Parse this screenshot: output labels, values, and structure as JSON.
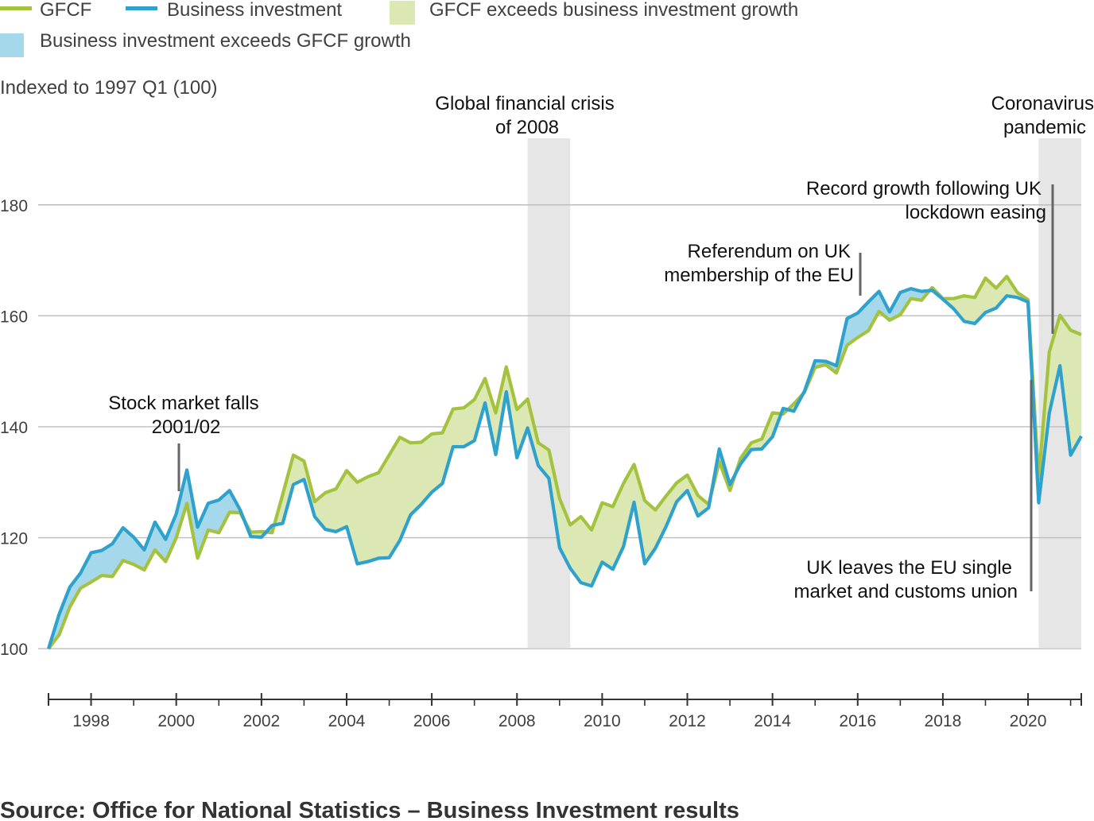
{
  "legend": {
    "gfcf": "GFCF",
    "business": "Business investment",
    "gfcf_exceeds": "GFCF exceeds business investment growth",
    "business_exceeds": "Business investment exceeds GFCF growth"
  },
  "source": "Source: Office for National Statistics – Business Investment results",
  "annotations": {
    "stock_market": [
      "Stock market falls",
      "2001/02"
    ],
    "gfc": [
      "Global financial crisis",
      "of 2008"
    ],
    "referendum": [
      "Referendum on UK",
      "membership of the EU"
    ],
    "covid": [
      "Coronavirus",
      "pandemic"
    ],
    "record_growth": [
      "Record growth following UK",
      "lockdown easing"
    ],
    "uk_leaves": [
      "UK leaves the EU single",
      "market and customs union"
    ]
  },
  "colors": {
    "gfcf": "#a5c23f",
    "business": "#2ea1cc",
    "gfcf_fill": "#dbe8b4",
    "business_fill": "#a6d8eb",
    "shade": "#e6e6e6",
    "grid": "#bdbdbd"
  },
  "chart_data": {
    "type": "line",
    "ylabel": "Indexed to 1997 Q1 (100)",
    "ylim": [
      92,
      192
    ],
    "yticks": [
      100,
      120,
      140,
      160,
      180
    ],
    "xticks": [
      "1998",
      "2000",
      "2002",
      "2004",
      "2006",
      "2008",
      "2010",
      "2012",
      "2014",
      "2016",
      "2018",
      "2020"
    ],
    "x_start": "1997 Q1",
    "x_end": "2021 Q2",
    "grid": true,
    "legend_position": "top",
    "shaded_periods": [
      {
        "label": "Global financial crisis of 2008",
        "start": "2008 Q2",
        "end": "2009 Q2"
      },
      {
        "label": "Coronavirus pandemic",
        "start": "2020 Q2",
        "end": "2021 Q2"
      }
    ],
    "series": [
      {
        "name": "GFCF",
        "values": [
          100.0,
          102.5,
          107.5,
          110.9,
          112.0,
          113.2,
          113.0,
          115.9,
          115.2,
          114.2,
          117.8,
          115.7,
          120.0,
          126.2,
          116.3,
          121.4,
          120.9,
          124.6,
          124.5,
          121.0,
          121.1,
          120.9,
          127.8,
          134.9,
          133.8,
          126.5,
          128.1,
          128.8,
          132.1,
          130.0,
          131.0,
          131.7,
          134.9,
          138.1,
          137.1,
          137.2,
          138.7,
          138.9,
          143.2,
          143.4,
          144.9,
          148.7,
          142.5,
          150.8,
          143.1,
          145.0,
          137.1,
          135.8,
          127.1,
          122.3,
          123.8,
          121.4,
          126.3,
          125.6,
          129.8,
          133.2,
          126.7,
          125.0,
          127.5,
          129.9,
          131.3,
          127.6,
          126.0,
          133.7,
          128.5,
          134.3,
          137.1,
          137.8,
          142.5,
          142.3,
          144.1,
          146.2,
          150.7,
          151.2,
          149.7,
          154.7,
          156.1,
          157.3,
          160.8,
          159.2,
          160.2,
          163.1,
          162.8,
          165.1,
          163.1,
          163.1,
          163.6,
          163.3,
          166.8,
          165.0,
          167.1,
          164.2,
          162.9,
          130.6,
          153.5,
          160.1,
          157.4,
          156.6
        ]
      },
      {
        "name": "Business investment",
        "values": [
          100.0,
          106.2,
          111.1,
          113.6,
          117.3,
          117.7,
          118.9,
          121.8,
          120.1,
          117.8,
          122.8,
          119.7,
          124.3,
          132.2,
          121.9,
          126.2,
          126.8,
          128.5,
          125.0,
          120.2,
          120.1,
          122.2,
          122.6,
          129.6,
          130.5,
          123.8,
          121.5,
          121.1,
          122.0,
          115.3,
          115.7,
          116.3,
          116.4,
          119.5,
          124.1,
          126.0,
          128.2,
          129.8,
          136.4,
          136.4,
          137.5,
          144.3,
          135.0,
          146.3,
          134.4,
          139.8,
          133.0,
          130.7,
          118.2,
          114.5,
          111.9,
          111.3,
          115.6,
          114.3,
          118.4,
          126.4,
          115.3,
          118.1,
          122.0,
          126.5,
          128.5,
          123.9,
          125.4,
          136.0,
          129.6,
          133.3,
          135.9,
          136.0,
          138.2,
          143.3,
          142.8,
          146.4,
          151.9,
          151.8,
          151.0,
          159.5,
          160.5,
          162.5,
          164.4,
          160.7,
          164.2,
          164.9,
          164.4,
          164.6,
          163.0,
          161.3,
          159.0,
          158.6,
          160.6,
          161.4,
          163.6,
          163.3,
          162.5,
          126.3,
          142.5,
          151.0,
          134.9,
          138.3
        ]
      }
    ]
  }
}
